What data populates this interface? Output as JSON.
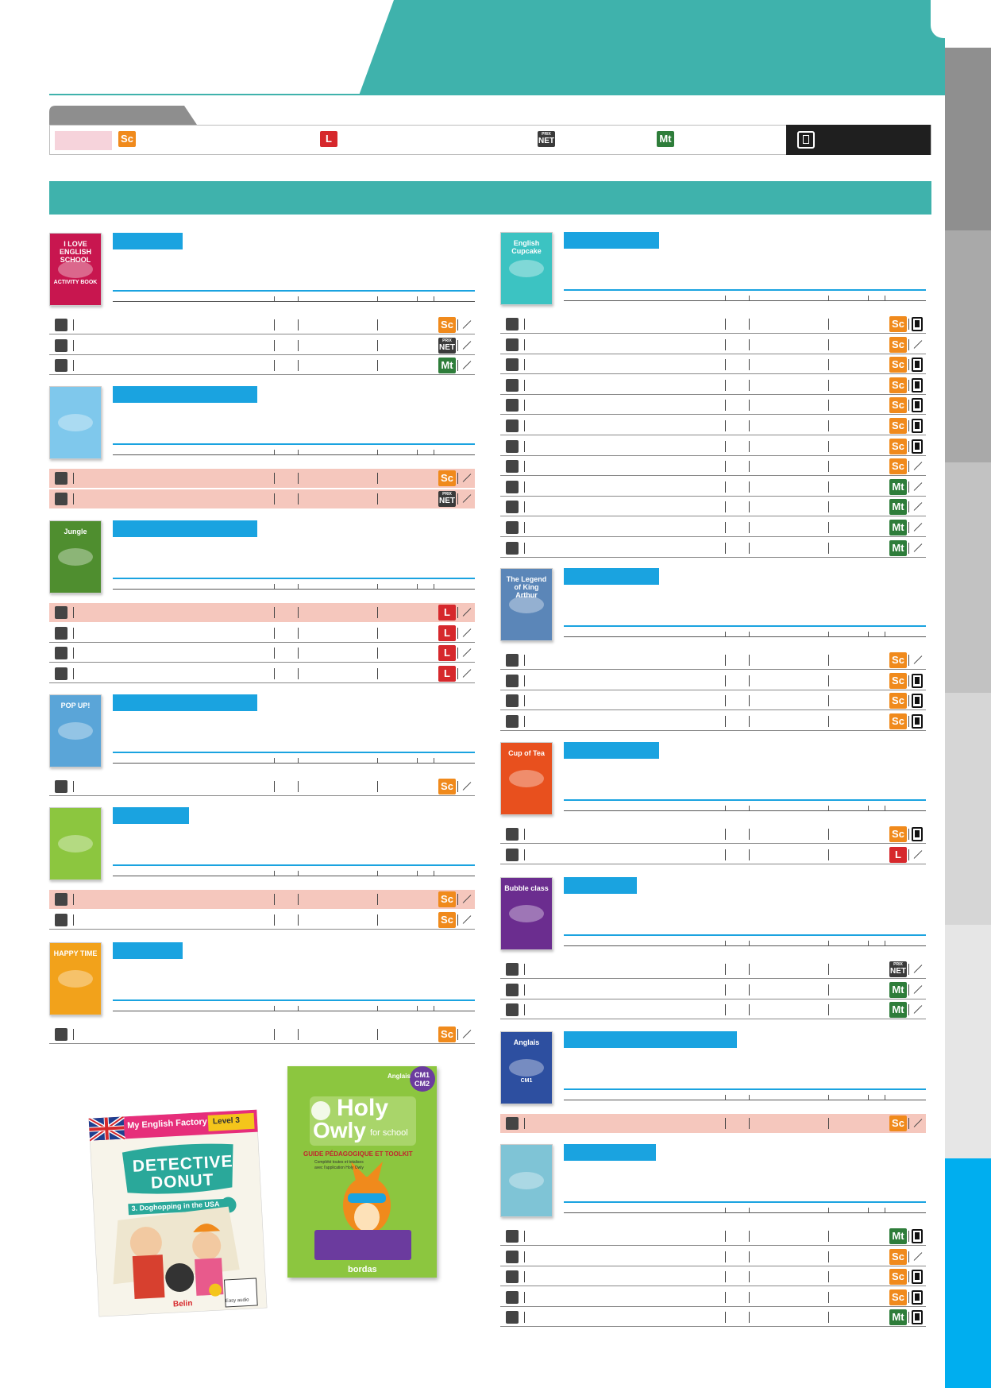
{
  "colors": {
    "teal": "#3fb2ac",
    "blue_accent": "#1aa3e0",
    "pink_row": "#f5c7bd",
    "badge_sc": "#f08a1c",
    "badge_l": "#d6282c",
    "badge_net": "#3a3a3a",
    "badge_mt": "#2e7d3a"
  },
  "legend": {
    "badges": [
      {
        "icon": "sc-badge-icon",
        "text": "Sc"
      },
      {
        "icon": "l-badge-icon",
        "text": "L"
      },
      {
        "icon": "prix-net-badge-icon",
        "top": "PRIX",
        "text": "NET"
      },
      {
        "icon": "mt-badge-icon",
        "text": "Mt"
      },
      {
        "icon": "tablet-icon"
      }
    ]
  },
  "left_column": [
    {
      "cover_title": "I LOVE ENGLISH SCHOOL",
      "cover_sub": "ACTIVITY BOOK",
      "cover_color": "#c8164f",
      "pill_width": 88,
      "rows": [
        {
          "pink": false,
          "badge": "sc",
          "end": "slash"
        },
        {
          "pink": false,
          "badge": "net",
          "end": "slash"
        },
        {
          "pink": false,
          "badge": "mt",
          "end": "slash"
        }
      ]
    },
    {
      "cover_title": "",
      "cover_sub": "",
      "cover_color": "#7fc8ec",
      "pill_width": 182,
      "rows": [
        {
          "pink": true,
          "badge": "sc",
          "end": "slash"
        },
        {
          "pink": true,
          "badge": "net",
          "end": "slash"
        }
      ]
    },
    {
      "cover_title": "Jungle",
      "cover_sub": "",
      "cover_color": "#4f8e2f",
      "pill_width": 182,
      "rows": [
        {
          "pink": true,
          "badge": "l",
          "end": "slash"
        },
        {
          "pink": false,
          "badge": "l",
          "end": "slash"
        },
        {
          "pink": false,
          "badge": "l",
          "end": "slash"
        },
        {
          "pink": false,
          "badge": "l",
          "end": "slash"
        }
      ]
    },
    {
      "cover_title": "POP UP!",
      "cover_sub": "",
      "cover_color": "#5aa5d8",
      "pill_width": 182,
      "rows": [
        {
          "pink": false,
          "badge": "sc",
          "end": "slash"
        }
      ]
    },
    {
      "cover_title": "",
      "cover_sub": "",
      "cover_color": "#8cc63f",
      "pill_width": 96,
      "rows": [
        {
          "pink": true,
          "badge": "sc",
          "end": "slash"
        },
        {
          "pink": false,
          "badge": "sc",
          "end": "slash"
        }
      ]
    },
    {
      "cover_title": "HAPPY TIME",
      "cover_sub": "",
      "cover_color": "#f2a21b",
      "pill_width": 88,
      "rows": [
        {
          "pink": false,
          "badge": "sc",
          "end": "slash"
        }
      ]
    }
  ],
  "right_column": [
    {
      "cover_title": "English Cupcake",
      "cover_sub": "",
      "cover_color": "#3cc3c2",
      "pill_width": 120,
      "rows": [
        {
          "pink": false,
          "badge": "sc",
          "end": "tablet"
        },
        {
          "pink": false,
          "badge": "sc",
          "end": "slash"
        },
        {
          "pink": false,
          "badge": "sc",
          "end": "tablet"
        },
        {
          "pink": false,
          "badge": "sc",
          "end": "tablet"
        },
        {
          "pink": false,
          "badge": "sc",
          "end": "tablet"
        },
        {
          "pink": false,
          "badge": "sc",
          "end": "tablet"
        },
        {
          "pink": false,
          "badge": "sc",
          "end": "tablet"
        },
        {
          "pink": false,
          "badge": "sc",
          "end": "slash"
        },
        {
          "pink": false,
          "badge": "mt",
          "end": "slash"
        },
        {
          "pink": false,
          "badge": "mt",
          "end": "slash"
        },
        {
          "pink": false,
          "badge": "mt",
          "end": "slash"
        },
        {
          "pink": false,
          "badge": "mt",
          "end": "slash"
        }
      ]
    },
    {
      "cover_title": "The Legend of King Arthur",
      "cover_sub": "",
      "cover_color": "#5b86b8",
      "pill_width": 120,
      "rows": [
        {
          "pink": false,
          "badge": "sc",
          "end": "slash"
        },
        {
          "pink": false,
          "badge": "sc",
          "end": "tablet"
        },
        {
          "pink": false,
          "badge": "sc",
          "end": "tablet"
        },
        {
          "pink": false,
          "badge": "sc",
          "end": "tablet"
        }
      ]
    },
    {
      "cover_title": "Cup of Tea",
      "cover_sub": "",
      "cover_color": "#e8501e",
      "pill_width": 120,
      "rows": [
        {
          "pink": false,
          "badge": "sc",
          "end": "tablet"
        },
        {
          "pink": false,
          "badge": "l",
          "end": "slash"
        }
      ]
    },
    {
      "cover_title": "Bubble class",
      "cover_sub": "",
      "cover_color": "#6b2d8f",
      "pill_width": 92,
      "rows": [
        {
          "pink": false,
          "badge": "net",
          "end": "slash"
        },
        {
          "pink": false,
          "badge": "mt",
          "end": "slash"
        },
        {
          "pink": false,
          "badge": "mt",
          "end": "slash"
        }
      ]
    },
    {
      "cover_title": "Anglais",
      "cover_sub": "CM1",
      "cover_color": "#2d4fa0",
      "pill_width": 218,
      "rows": [
        {
          "pink": true,
          "badge": "sc",
          "end": "slash"
        }
      ]
    },
    {
      "cover_title": "",
      "cover_sub": "",
      "cover_color": "#7fc4d6",
      "pill_width": 116,
      "rows": [
        {
          "pink": false,
          "badge": "mt",
          "end": "tablet"
        },
        {
          "pink": false,
          "badge": "sc",
          "end": "slash"
        },
        {
          "pink": false,
          "badge": "sc",
          "end": "tablet"
        },
        {
          "pink": false,
          "badge": "sc",
          "end": "tablet"
        },
        {
          "pink": false,
          "badge": "mt",
          "end": "tablet"
        }
      ]
    }
  ],
  "featured_books": {
    "detective_donut": {
      "series": "My English Factory",
      "level": "Level 3",
      "title_line1": "DETECTIVE",
      "title_line2": "DONUT",
      "subtitle": "3. Doghopping in the USA",
      "publisher": "Belin",
      "easy_audio": "Easy audio"
    },
    "holy_owly": {
      "subject": "Anglais",
      "grades_top": "CM1",
      "grades_bottom": "CM2",
      "title_line1": "Holy",
      "title_line2": "Owly",
      "title_suffix": "for school",
      "guide": "GUIDE PÉDAGOGIQUE ET TOOLKIT",
      "guide_sub1": "Complété toutes et totalises",
      "guide_sub2": "avec l'application Holy Owly",
      "publisher": "bordas"
    }
  }
}
